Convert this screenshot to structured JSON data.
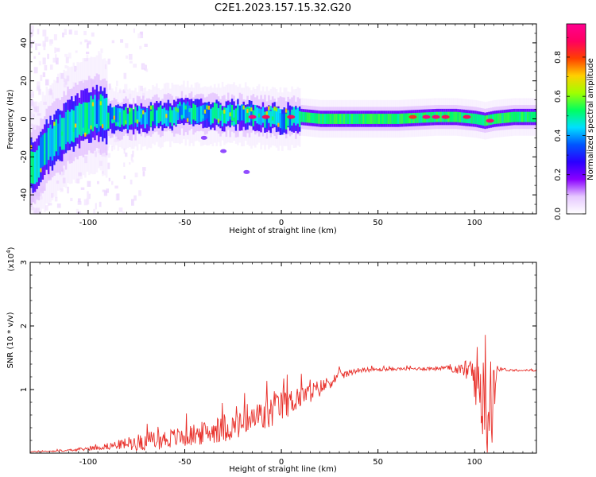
{
  "title": "C2E1.2023.157.15.32.G20",
  "colorbar": {
    "label": "Normalized spectral amplitude",
    "ticks": [
      "0.0",
      "0.2",
      "0.4",
      "0.6",
      "0.8"
    ],
    "tick_values": [
      0.0,
      0.2,
      0.4,
      0.6,
      0.8
    ],
    "range": [
      0.0,
      0.97
    ],
    "colormap": [
      "#ffffff",
      "#e6c8ff",
      "#8a00ff",
      "#2a00ff",
      "#0055ff",
      "#00e0ff",
      "#00ff60",
      "#a0ff00",
      "#ffd000",
      "#ff4000",
      "#ff0060",
      "#ff0090"
    ]
  },
  "colors": {
    "snr_line": "#e8302a",
    "axes": "#000000"
  },
  "chart_data": [
    {
      "type": "heatmap",
      "title": "",
      "xlabel": "Height of straight line (km)",
      "ylabel": "Frequency (Hz)",
      "xlim": [
        -130,
        132
      ],
      "ylim": [
        -50,
        50
      ],
      "xticks": [
        -100,
        -50,
        0,
        50,
        100
      ],
      "yticks": [
        -40,
        -20,
        0,
        20,
        40
      ],
      "grid": false,
      "ridge": {
        "x": [
          -128,
          -122,
          -115,
          -108,
          -100,
          -95,
          -90,
          -80,
          -70,
          -60,
          -50,
          -40,
          -30,
          -20,
          -10,
          0,
          10,
          20,
          40,
          60,
          80,
          90,
          100,
          105,
          110,
          120,
          132
        ],
        "y": [
          -25,
          -15,
          -8,
          -2,
          2,
          3,
          1,
          0,
          1,
          2,
          3,
          3,
          2,
          2,
          1,
          0,
          1,
          0,
          0,
          0,
          1,
          1,
          0,
          -1,
          0,
          1,
          1
        ]
      },
      "hotspots": [
        {
          "x": -15,
          "y": 1,
          "level": 0.95
        },
        {
          "x": -8,
          "y": 1,
          "level": 0.9
        },
        {
          "x": 5,
          "y": 1,
          "level": 0.9
        },
        {
          "x": 68,
          "y": 1,
          "level": 0.85
        },
        {
          "x": 75,
          "y": 1,
          "level": 0.95
        },
        {
          "x": 80,
          "y": 1,
          "level": 0.95
        },
        {
          "x": 85,
          "y": 1,
          "level": 0.9
        },
        {
          "x": 96,
          "y": 1,
          "level": 0.9
        },
        {
          "x": 108,
          "y": -1,
          "level": 0.95
        }
      ],
      "side_branch": {
        "x": [
          -40,
          -30,
          -18
        ],
        "y": [
          -10,
          -17,
          -28
        ]
      }
    },
    {
      "type": "line",
      "title": "",
      "xlabel": "Height of straight line (km)",
      "ylabel": "SNR (10 * v/v)",
      "y_scale_label": "(x10^4)",
      "y_scale_base": "(x10",
      "y_scale_exp": "4",
      "y_scale_close": ")",
      "xlim": [
        -130,
        132
      ],
      "ylim": [
        0,
        3
      ],
      "xticks": [
        -100,
        -50,
        0,
        50,
        100
      ],
      "yticks": [
        1,
        2,
        3
      ],
      "grid": false,
      "series": [
        {
          "color": "#e8302a",
          "envelope_x": [
            -130,
            -110,
            -95,
            -85,
            -75,
            -65,
            -55,
            -45,
            -35,
            -25,
            -15,
            -8,
            0,
            10,
            20,
            30,
            40,
            60,
            85,
            95,
            100,
            103,
            105,
            107,
            108,
            110,
            112,
            120,
            132
          ],
          "envelope_base": [
            0.02,
            0.04,
            0.08,
            0.12,
            0.15,
            0.18,
            0.22,
            0.26,
            0.32,
            0.38,
            0.45,
            0.55,
            0.7,
            0.85,
            1.0,
            1.2,
            1.3,
            1.32,
            1.33,
            1.3,
            1.25,
            1.0,
            1.1,
            0.8,
            1.0,
            1.1,
            1.32,
            1.3,
            1.3
          ],
          "envelope_noise": [
            0.01,
            0.02,
            0.05,
            0.1,
            0.18,
            0.22,
            0.22,
            0.25,
            0.28,
            0.3,
            0.35,
            0.4,
            0.35,
            0.25,
            0.2,
            0.1,
            0.05,
            0.03,
            0.05,
            0.15,
            0.4,
            0.8,
            1.0,
            1.2,
            1.4,
            0.7,
            0.05,
            0.02,
            0.02
          ]
        }
      ]
    }
  ]
}
